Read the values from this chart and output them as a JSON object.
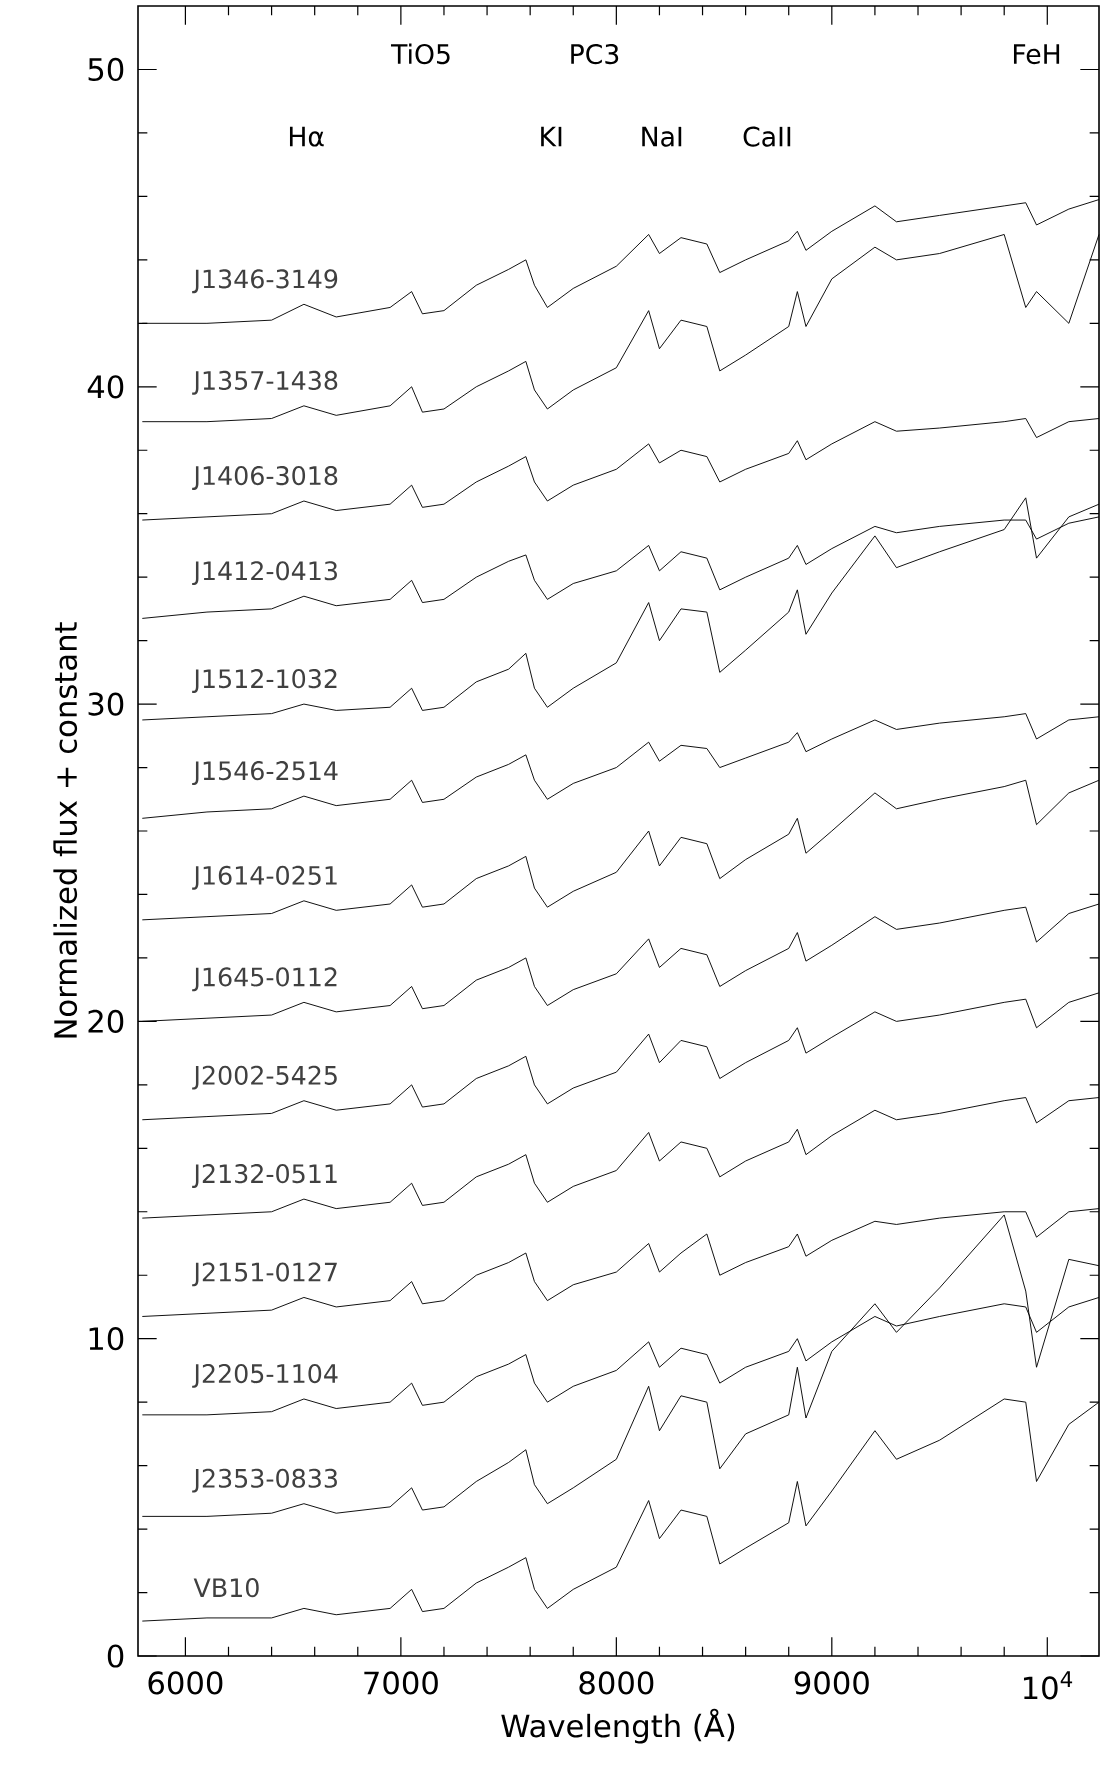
{
  "chart_data": {
    "type": "line",
    "xlabel": "Wavelength (Å)",
    "ylabel": "Normalized flux + constant",
    "xlim": [
      5780,
      10240
    ],
    "ylim": [
      0,
      52
    ],
    "xticks": [
      6000,
      7000,
      8000,
      9000,
      {
        "value": 10000,
        "label": "10$^{4}$"
      }
    ],
    "yticks": [
      0,
      10,
      20,
      30,
      40,
      50
    ],
    "grid": false,
    "legend": "left",
    "marker": "none",
    "line_style": "solid",
    "x": [
      5800,
      6100,
      6400,
      6550,
      6700,
      6950,
      7050,
      7100,
      7200,
      7350,
      7500,
      7580,
      7620,
      7680,
      7800,
      8000,
      8150,
      8200,
      8300,
      8420,
      8480,
      8600,
      8800,
      8840,
      8880,
      9000,
      9200,
      9300,
      9500,
      9800,
      9900,
      9950,
      10100,
      10240
    ],
    "annotations": [
      "TiO5",
      "PC3",
      "FeH",
      "Hα",
      "KI",
      "NaI",
      "CaII"
    ],
    "series": [
      {
        "name": "J1346-3149",
        "color": "#000000",
        "values": [
          42.0,
          42.0,
          42.1,
          42.6,
          42.2,
          42.5,
          43.0,
          42.3,
          42.4,
          43.2,
          43.7,
          44.0,
          43.2,
          42.5,
          43.1,
          43.8,
          44.8,
          44.2,
          44.7,
          44.5,
          43.6,
          44.0,
          44.6,
          44.9,
          44.3,
          44.9,
          45.7,
          45.2,
          45.4,
          45.7,
          45.8,
          45.1,
          45.6,
          45.9
        ]
      },
      {
        "name": "J1357-1438",
        "color": "#000000",
        "values": [
          38.9,
          38.9,
          39.0,
          39.4,
          39.1,
          39.4,
          40.0,
          39.2,
          39.3,
          40.0,
          40.5,
          40.8,
          39.9,
          39.3,
          39.9,
          40.6,
          42.4,
          41.2,
          42.1,
          41.9,
          40.5,
          41.0,
          41.9,
          43.0,
          41.9,
          43.4,
          44.4,
          44.0,
          44.2,
          44.8,
          42.5,
          43.0,
          42.0,
          44.8
        ]
      },
      {
        "name": "J1406-3018",
        "color": "#000000",
        "values": [
          35.8,
          35.9,
          36.0,
          36.4,
          36.1,
          36.3,
          36.9,
          36.2,
          36.3,
          37.0,
          37.5,
          37.8,
          37.0,
          36.4,
          36.9,
          37.4,
          38.2,
          37.6,
          38.0,
          37.8,
          37.0,
          37.4,
          37.9,
          38.3,
          37.7,
          38.2,
          38.9,
          38.6,
          38.7,
          38.9,
          39.0,
          38.4,
          38.9,
          39.0
        ]
      },
      {
        "name": "J1412-0413",
        "color": "#000000",
        "values": [
          32.7,
          32.9,
          33.0,
          33.4,
          33.1,
          33.3,
          33.9,
          33.2,
          33.3,
          34.0,
          34.5,
          34.7,
          33.9,
          33.3,
          33.8,
          34.2,
          35.0,
          34.2,
          34.8,
          34.6,
          33.6,
          34.0,
          34.6,
          35.0,
          34.4,
          34.9,
          35.6,
          35.4,
          35.6,
          35.8,
          35.8,
          35.2,
          35.7,
          35.9
        ]
      },
      {
        "name": "J1512-1032",
        "color": "#000000",
        "values": [
          29.5,
          29.6,
          29.7,
          30.0,
          29.8,
          29.9,
          30.5,
          29.8,
          29.9,
          30.7,
          31.1,
          31.6,
          30.5,
          29.9,
          30.5,
          31.3,
          33.2,
          32.0,
          33.0,
          32.9,
          31.0,
          31.7,
          32.9,
          33.6,
          32.2,
          33.5,
          35.3,
          34.3,
          34.8,
          35.5,
          36.5,
          34.6,
          35.9,
          36.3
        ]
      },
      {
        "name": "J1546-2514",
        "color": "#000000",
        "values": [
          26.4,
          26.6,
          26.7,
          27.1,
          26.8,
          27.0,
          27.6,
          26.9,
          27.0,
          27.7,
          28.1,
          28.4,
          27.6,
          27.0,
          27.5,
          28.0,
          28.8,
          28.2,
          28.7,
          28.6,
          28.0,
          28.3,
          28.8,
          29.1,
          28.5,
          28.9,
          29.5,
          29.2,
          29.4,
          29.6,
          29.7,
          28.9,
          29.5,
          29.6
        ]
      },
      {
        "name": "J1614-0251",
        "color": "#000000",
        "values": [
          23.2,
          23.3,
          23.4,
          23.8,
          23.5,
          23.7,
          24.3,
          23.6,
          23.7,
          24.5,
          24.9,
          25.2,
          24.2,
          23.6,
          24.1,
          24.7,
          26.0,
          24.9,
          25.8,
          25.6,
          24.5,
          25.1,
          25.9,
          26.4,
          25.3,
          26.0,
          27.2,
          26.7,
          27.0,
          27.4,
          27.6,
          26.2,
          27.2,
          27.6
        ]
      },
      {
        "name": "J1645-0112",
        "color": "#000000",
        "values": [
          20.0,
          20.1,
          20.2,
          20.6,
          20.3,
          20.5,
          21.1,
          20.4,
          20.5,
          21.3,
          21.7,
          22.0,
          21.1,
          20.5,
          21.0,
          21.5,
          22.6,
          21.7,
          22.3,
          22.1,
          21.1,
          21.6,
          22.3,
          22.8,
          21.9,
          22.4,
          23.3,
          22.9,
          23.1,
          23.5,
          23.6,
          22.5,
          23.4,
          23.7
        ]
      },
      {
        "name": "J2002-5425",
        "color": "#000000",
        "values": [
          16.9,
          17.0,
          17.1,
          17.5,
          17.2,
          17.4,
          18.0,
          17.3,
          17.4,
          18.2,
          18.6,
          18.9,
          18.0,
          17.4,
          17.9,
          18.4,
          19.6,
          18.7,
          19.4,
          19.2,
          18.2,
          18.7,
          19.4,
          19.8,
          19.0,
          19.5,
          20.3,
          20.0,
          20.2,
          20.6,
          20.7,
          19.8,
          20.6,
          20.9
        ]
      },
      {
        "name": "J2132-0511",
        "color": "#000000",
        "values": [
          13.8,
          13.9,
          14.0,
          14.4,
          14.1,
          14.3,
          14.9,
          14.2,
          14.3,
          15.1,
          15.5,
          15.8,
          14.9,
          14.3,
          14.8,
          15.3,
          16.5,
          15.6,
          16.2,
          16.0,
          15.1,
          15.6,
          16.2,
          16.6,
          15.8,
          16.4,
          17.2,
          16.9,
          17.1,
          17.5,
          17.6,
          16.8,
          17.5,
          17.6
        ]
      },
      {
        "name": "J2151-0127",
        "color": "#000000",
        "values": [
          10.7,
          10.8,
          10.9,
          11.3,
          11.0,
          11.2,
          11.8,
          11.1,
          11.2,
          12.0,
          12.4,
          12.7,
          11.8,
          11.2,
          11.7,
          12.1,
          13.0,
          12.1,
          12.7,
          13.3,
          12.0,
          12.4,
          12.9,
          13.3,
          12.6,
          13.1,
          13.7,
          13.6,
          13.8,
          14.0,
          14.0,
          13.2,
          14.0,
          14.1
        ]
      },
      {
        "name": "J2205-1104",
        "color": "#000000",
        "values": [
          7.6,
          7.6,
          7.7,
          8.1,
          7.8,
          8.0,
          8.6,
          7.9,
          8.0,
          8.8,
          9.2,
          9.5,
          8.6,
          8.0,
          8.5,
          9.0,
          9.9,
          9.1,
          9.7,
          9.5,
          8.6,
          9.1,
          9.6,
          10.0,
          9.3,
          9.9,
          10.7,
          10.4,
          10.7,
          11.1,
          11.0,
          10.2,
          11.0,
          11.3
        ]
      },
      {
        "name": "J2353-0833",
        "color": "#000000",
        "values": [
          4.4,
          4.4,
          4.5,
          4.8,
          4.5,
          4.7,
          5.3,
          4.6,
          4.7,
          5.5,
          6.1,
          6.5,
          5.4,
          4.8,
          5.3,
          6.2,
          8.5,
          7.1,
          8.2,
          8.0,
          5.9,
          7.0,
          7.6,
          9.1,
          7.5,
          9.6,
          11.1,
          10.2,
          11.6,
          13.9,
          11.5,
          9.1,
          12.5,
          12.3
        ]
      },
      {
        "name": "VB10",
        "color": "#000000",
        "values": [
          1.1,
          1.2,
          1.2,
          1.5,
          1.3,
          1.5,
          2.1,
          1.4,
          1.5,
          2.3,
          2.8,
          3.1,
          2.1,
          1.5,
          2.1,
          2.8,
          4.9,
          3.7,
          4.6,
          4.4,
          2.9,
          3.4,
          4.2,
          5.5,
          4.1,
          5.2,
          7.1,
          6.2,
          6.8,
          8.1,
          8.0,
          5.5,
          7.3,
          8.0
        ]
      }
    ]
  }
}
